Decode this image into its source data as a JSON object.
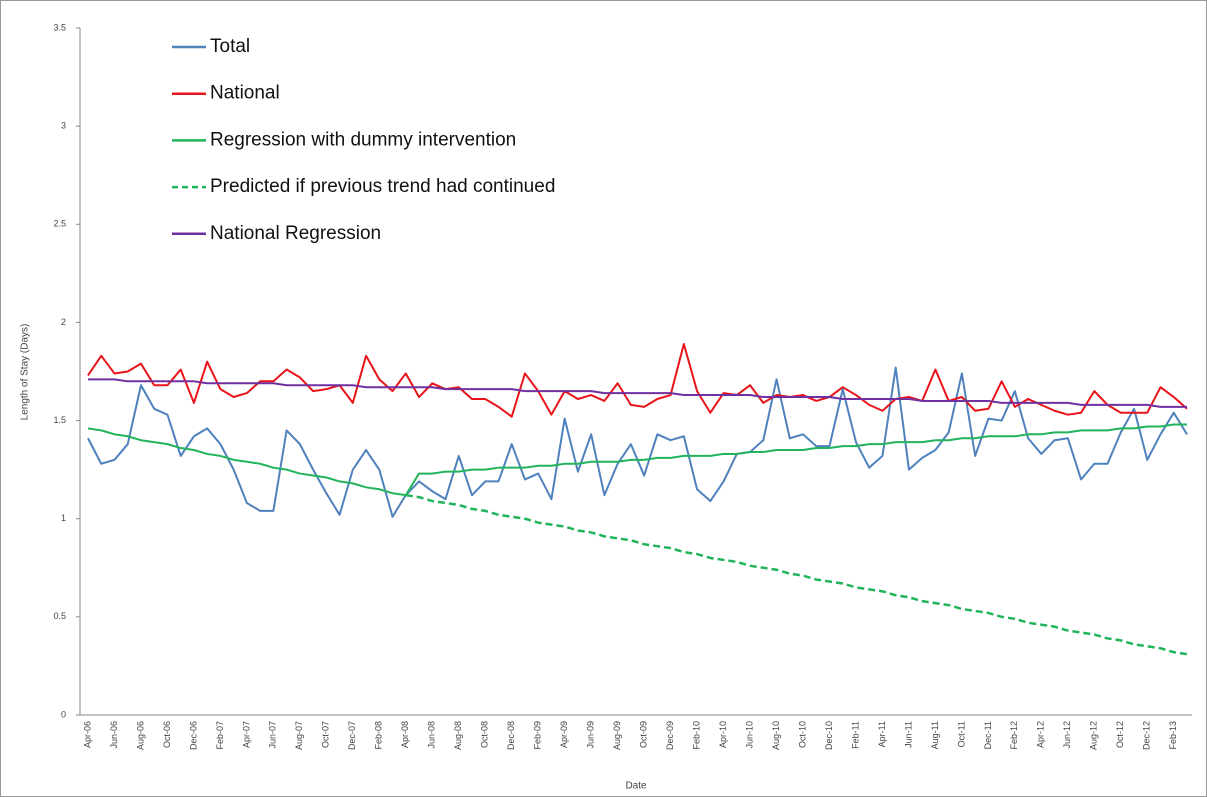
{
  "chart_data": {
    "type": "line",
    "ylabel": "Length of Stay (Days)",
    "xlabel": "Date",
    "legend": "top-left",
    "grid": false,
    "ylim": [
      0,
      3.5
    ],
    "yticks": [
      0,
      0.5,
      1,
      1.5,
      2,
      2.5,
      3,
      3.5
    ],
    "categories": [
      "Apr-06",
      null,
      "Jun-06",
      null,
      "Aug-06",
      null,
      "Oct-06",
      null,
      "Dec-06",
      null,
      "Feb-07",
      null,
      "Apr-07",
      null,
      "Jun-07",
      null,
      "Aug-07",
      null,
      "Oct-07",
      null,
      "Dec-07",
      null,
      "Feb-08",
      null,
      "Apr-08",
      null,
      "Jun-08",
      null,
      "Aug-08",
      null,
      "Oct-08",
      null,
      "Dec-08",
      null,
      "Feb-09",
      null,
      "Apr-09",
      null,
      "Jun-09",
      null,
      "Aug-09",
      null,
      "Oct-09",
      null,
      "Dec-09",
      null,
      "Feb-10",
      null,
      "Apr-10",
      null,
      "Jun-10",
      null,
      "Aug-10",
      null,
      "Oct-10",
      null,
      "Dec-10",
      null,
      "Feb-11",
      null,
      "Apr-11",
      null,
      "Jun-11",
      null,
      "Aug-11",
      null,
      "Oct-11",
      null,
      "Dec-11",
      null,
      "Feb-12",
      null,
      "Apr-12",
      null,
      "Jun-12",
      null,
      "Aug-12",
      null,
      "Oct-12",
      null,
      "Dec-12",
      null,
      "Feb-13",
      null
    ],
    "series": [
      {
        "name": "Total",
        "color": "#4f81bd",
        "line_style": "solid",
        "values": [
          1.41,
          1.28,
          1.3,
          1.38,
          1.68,
          1.56,
          1.53,
          1.32,
          1.42,
          1.46,
          1.38,
          1.25,
          1.08,
          1.04,
          1.04,
          1.45,
          1.38,
          1.25,
          1.13,
          1.02,
          1.25,
          1.35,
          1.25,
          1.01,
          1.12,
          1.19,
          1.14,
          1.1,
          1.32,
          1.12,
          1.19,
          1.19,
          1.38,
          1.2,
          1.23,
          1.1,
          1.51,
          1.24,
          1.43,
          1.12,
          1.28,
          1.38,
          1.22,
          1.43,
          1.4,
          1.42,
          1.15,
          1.09,
          1.19,
          1.33,
          1.34,
          1.4,
          1.71,
          1.41,
          1.43,
          1.37,
          1.37,
          1.66,
          1.39,
          1.26,
          1.32,
          1.77,
          1.25,
          1.31,
          1.35,
          1.44,
          1.74,
          1.32,
          1.51,
          1.5,
          1.65,
          1.41,
          1.33,
          1.4,
          1.41,
          1.2,
          1.28,
          1.28,
          1.44,
          1.56,
          1.3,
          1.43,
          1.54,
          1.43
        ]
      },
      {
        "name": "National",
        "color": "#e8141a",
        "line_style": "solid",
        "values": [
          1.73,
          1.83,
          1.74,
          1.75,
          1.79,
          1.68,
          1.68,
          1.76,
          1.59,
          1.8,
          1.66,
          1.62,
          1.64,
          1.7,
          1.7,
          1.76,
          1.72,
          1.65,
          1.66,
          1.68,
          1.59,
          1.83,
          1.71,
          1.65,
          1.74,
          1.62,
          1.69,
          1.66,
          1.67,
          1.61,
          1.61,
          1.57,
          1.52,
          1.74,
          1.65,
          1.53,
          1.65,
          1.61,
          1.63,
          1.6,
          1.69,
          1.58,
          1.57,
          1.61,
          1.63,
          1.89,
          1.65,
          1.54,
          1.64,
          1.63,
          1.68,
          1.59,
          1.63,
          1.62,
          1.63,
          1.6,
          1.62,
          1.67,
          1.63,
          1.58,
          1.55,
          1.61,
          1.62,
          1.6,
          1.76,
          1.6,
          1.62,
          1.55,
          1.56,
          1.7,
          1.57,
          1.61,
          1.58,
          1.55,
          1.53,
          1.54,
          1.65,
          1.58,
          1.54,
          1.54,
          1.54,
          1.67,
          1.62,
          1.56
        ]
      },
      {
        "name": "Regression with dummy intervention",
        "color": "#21b45a",
        "line_style": "solid",
        "values": [
          1.46,
          1.45,
          1.43,
          1.42,
          1.4,
          1.39,
          1.38,
          1.36,
          1.35,
          1.33,
          1.32,
          1.3,
          1.29,
          1.28,
          1.26,
          1.25,
          1.23,
          1.22,
          1.21,
          1.19,
          1.18,
          1.16,
          1.15,
          1.13,
          1.12,
          1.23,
          1.23,
          1.24,
          1.24,
          1.25,
          1.25,
          1.26,
          1.26,
          1.26,
          1.27,
          1.27,
          1.28,
          1.28,
          1.29,
          1.29,
          1.29,
          1.3,
          1.3,
          1.31,
          1.31,
          1.32,
          1.32,
          1.32,
          1.33,
          1.33,
          1.34,
          1.34,
          1.35,
          1.35,
          1.35,
          1.36,
          1.36,
          1.37,
          1.37,
          1.38,
          1.38,
          1.39,
          1.39,
          1.39,
          1.4,
          1.4,
          1.41,
          1.41,
          1.42,
          1.42,
          1.42,
          1.43,
          1.43,
          1.44,
          1.44,
          1.45,
          1.45,
          1.45,
          1.46,
          1.46,
          1.47,
          1.47,
          1.48,
          1.48
        ]
      },
      {
        "name": "Predicted if previous trend had continued",
        "color": "#21b45a",
        "line_style": "dashed",
        "values": [
          null,
          null,
          null,
          null,
          null,
          null,
          null,
          null,
          null,
          null,
          null,
          null,
          null,
          null,
          null,
          null,
          null,
          null,
          null,
          null,
          null,
          null,
          null,
          null,
          1.12,
          1.11,
          1.09,
          1.08,
          1.07,
          1.05,
          1.04,
          1.02,
          1.01,
          1.0,
          0.98,
          0.97,
          0.96,
          0.94,
          0.93,
          0.91,
          0.9,
          0.89,
          0.87,
          0.86,
          0.85,
          0.83,
          0.82,
          0.8,
          0.79,
          0.78,
          0.76,
          0.75,
          0.74,
          0.72,
          0.71,
          0.69,
          0.68,
          0.67,
          0.65,
          0.64,
          0.63,
          0.61,
          0.6,
          0.58,
          0.57,
          0.56,
          0.54,
          0.53,
          0.52,
          0.5,
          0.49,
          0.47,
          0.46,
          0.45,
          0.43,
          0.42,
          0.41,
          0.39,
          0.38,
          0.36,
          0.35,
          0.34,
          0.32,
          0.31
        ]
      },
      {
        "name": "National Regression",
        "color": "#7030a0",
        "line_style": "solid",
        "values": [
          1.71,
          1.71,
          1.71,
          1.7,
          1.7,
          1.7,
          1.7,
          1.7,
          1.7,
          1.69,
          1.69,
          1.69,
          1.69,
          1.69,
          1.69,
          1.68,
          1.68,
          1.68,
          1.68,
          1.68,
          1.68,
          1.67,
          1.67,
          1.67,
          1.67,
          1.67,
          1.67,
          1.66,
          1.66,
          1.66,
          1.66,
          1.66,
          1.66,
          1.65,
          1.65,
          1.65,
          1.65,
          1.65,
          1.65,
          1.64,
          1.64,
          1.64,
          1.64,
          1.64,
          1.64,
          1.63,
          1.63,
          1.63,
          1.63,
          1.63,
          1.63,
          1.62,
          1.62,
          1.62,
          1.62,
          1.62,
          1.62,
          1.61,
          1.61,
          1.61,
          1.61,
          1.61,
          1.61,
          1.6,
          1.6,
          1.6,
          1.6,
          1.6,
          1.6,
          1.59,
          1.59,
          1.59,
          1.59,
          1.59,
          1.59,
          1.58,
          1.58,
          1.58,
          1.58,
          1.58,
          1.58,
          1.57,
          1.57,
          1.57
        ]
      }
    ]
  }
}
